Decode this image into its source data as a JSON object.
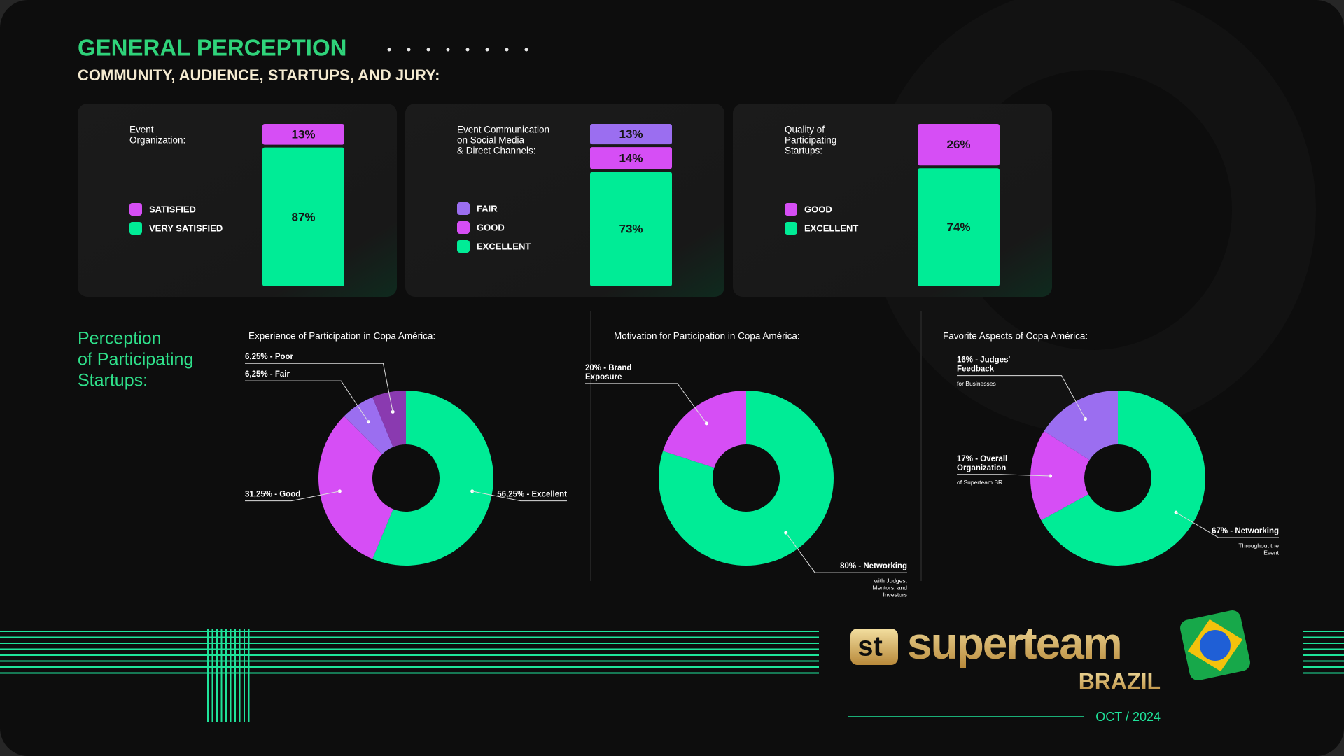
{
  "header": {
    "title": "GENERAL PERCEPTION",
    "subtitle": "COMMUNITY, AUDIENCE, STARTUPS, AND JURY:"
  },
  "section_title": [
    "Perception",
    "of Participating",
    "Startups:"
  ],
  "chart_data": [
    {
      "type": "bar",
      "stacked": true,
      "title": [
        "Event",
        "Organization:"
      ],
      "series": [
        {
          "name": "SATISFIED",
          "color": "#d64ef5",
          "values": [
            13
          ],
          "value_labels": [
            "13%"
          ]
        },
        {
          "name": "VERY SATISFIED",
          "color": "#00ec96",
          "values": [
            87
          ],
          "value_labels": [
            "87%"
          ]
        }
      ]
    },
    {
      "type": "bar",
      "stacked": true,
      "title": [
        "Event Communication",
        "on Social Media",
        "& Direct Channels:"
      ],
      "series": [
        {
          "name": "FAIR",
          "color": "#9b6ef0",
          "values": [
            13
          ],
          "value_labels": [
            "13%"
          ]
        },
        {
          "name": "GOOD",
          "color": "#d64ef5",
          "values": [
            14
          ],
          "value_labels": [
            "14%"
          ]
        },
        {
          "name": "EXCELLENT",
          "color": "#00ec96",
          "values": [
            73
          ],
          "value_labels": [
            "73%"
          ]
        }
      ]
    },
    {
      "type": "bar",
      "stacked": true,
      "title": [
        "Quality of",
        "Participating",
        "Startups:"
      ],
      "series": [
        {
          "name": "GOOD",
          "color": "#d64ef5",
          "values": [
            26
          ],
          "value_labels": [
            "26%"
          ]
        },
        {
          "name": "EXCELLENT",
          "color": "#00ec96",
          "values": [
            74
          ],
          "value_labels": [
            "74%"
          ]
        }
      ]
    },
    {
      "type": "pie",
      "donut": true,
      "title": "Experience of Participation in Copa América:",
      "slices": [
        {
          "value": 56.25,
          "label": [
            "56,25% - Excellent"
          ],
          "color": "#00ec96"
        },
        {
          "value": 31.25,
          "label": [
            "31,25% - Good"
          ],
          "color": "#d64ef5"
        },
        {
          "value": 6.25,
          "label": [
            "6,25% - Fair"
          ],
          "color": "#9b6ef0"
        },
        {
          "value": 6.25,
          "label": [
            "6,25% - Poor"
          ],
          "color": "#8a3ab0"
        }
      ]
    },
    {
      "type": "pie",
      "donut": true,
      "title": "Motivation for Participation in Copa América:",
      "slices": [
        {
          "value": 80,
          "label": [
            "80% - Networking"
          ],
          "note": [
            "with Judges,",
            "Mentors, and",
            "Investors"
          ],
          "color": "#00ec96"
        },
        {
          "value": 20,
          "label": [
            "20% - Brand",
            "Exposure"
          ],
          "color": "#d64ef5"
        }
      ]
    },
    {
      "type": "pie",
      "donut": true,
      "title": "Favorite Aspects of Copa América:",
      "slices": [
        {
          "value": 67,
          "label": [
            "67% - Networking"
          ],
          "note": [
            "Throughout the",
            "Event"
          ],
          "color": "#00ec96"
        },
        {
          "value": 17,
          "label": [
            "17% - Overall",
            "Organization"
          ],
          "note": [
            "of Superteam BR"
          ],
          "color": "#d64ef5"
        },
        {
          "value": 16,
          "label": [
            "16% - Judges'",
            "Feedback"
          ],
          "note": [
            "for Businesses"
          ],
          "color": "#9b6ef0"
        }
      ]
    }
  ],
  "footer": {
    "brand": "superteam",
    "country": "BRAZIL",
    "date": "OCT / 2024"
  }
}
